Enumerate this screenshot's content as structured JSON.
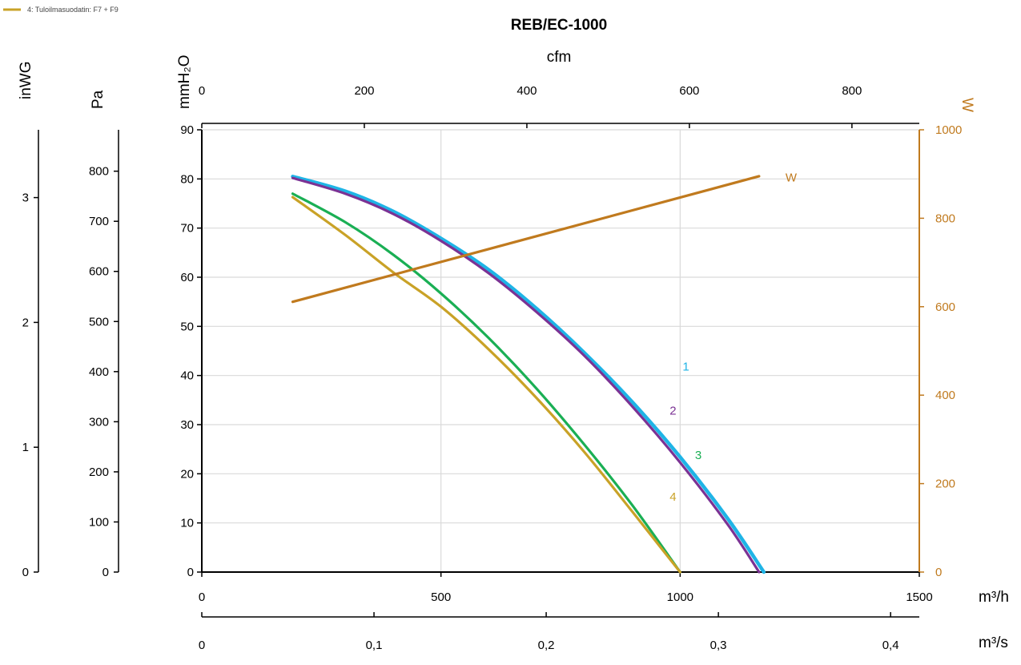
{
  "legend": {
    "entries": [
      {
        "color": "#C9A227",
        "label": "4: Tuloilmasuodatin: F7 + F9"
      }
    ]
  },
  "chart_data": {
    "type": "line",
    "title": "REB/EC-1000",
    "x_axes": {
      "primary": {
        "label": "m³/h",
        "range": [
          0,
          1500
        ],
        "ticks": [
          0,
          500,
          1000,
          1500
        ]
      },
      "secondary_m3s": {
        "label": "m³/s",
        "range": [
          0,
          0.41667
        ],
        "ticks": [
          0,
          0.1,
          0.2,
          0.3,
          0.4
        ],
        "tick_labels": [
          "0",
          "0,1",
          "0,2",
          "0,3",
          "0,4"
        ]
      },
      "top_cfm": {
        "label": "cfm",
        "range": [
          0,
          882.9
        ],
        "ticks": [
          0,
          200,
          400,
          600,
          800
        ]
      }
    },
    "y_axes": {
      "mmH2O": {
        "label": "mmH₂O",
        "range": [
          0,
          90
        ],
        "ticks": [
          0,
          10,
          20,
          30,
          40,
          50,
          60,
          70,
          80,
          90
        ]
      },
      "Pa": {
        "label": "Pa",
        "range": [
          0,
          882.6
        ],
        "ticks": [
          0,
          100,
          200,
          300,
          400,
          500,
          600,
          700,
          800
        ]
      },
      "inWG": {
        "label": "inWG",
        "range": [
          0,
          3.543
        ],
        "ticks": [
          0,
          1,
          2,
          3
        ]
      },
      "W": {
        "label": "W",
        "range": [
          0,
          1000
        ],
        "ticks": [
          0,
          200,
          400,
          600,
          800,
          1000
        ],
        "color": "#C07A1E"
      }
    },
    "grid": true,
    "series": [
      {
        "name": "1",
        "axis": "mmH2O",
        "color": "#1FB4E6",
        "x": [
          190,
          300,
          400,
          500,
          600,
          700,
          800,
          900,
          1000,
          1100,
          1175
        ],
        "y": [
          80.5,
          77.5,
          73.4,
          67.9,
          61.5,
          53.6,
          44.6,
          34.6,
          23.4,
          10.8,
          0
        ]
      },
      {
        "name": "2",
        "axis": "mmH2O",
        "color": "#7B3294",
        "x": [
          190,
          300,
          400,
          500,
          600,
          700,
          800,
          900,
          1000,
          1100,
          1165
        ],
        "y": [
          80.2,
          77.0,
          72.9,
          67.4,
          60.8,
          52.9,
          44.0,
          33.7,
          22.3,
          9.6,
          0
        ]
      },
      {
        "name": "3",
        "axis": "mmH2O",
        "color": "#1AAF54",
        "x": [
          190,
          300,
          400,
          500,
          600,
          700,
          800,
          900,
          1000,
          1028
        ],
        "y": [
          77.0,
          71.2,
          64.6,
          56.7,
          47.6,
          37.3,
          25.9,
          13.6,
          0,
          0
        ]
      },
      {
        "name": "4",
        "axis": "mmH2O",
        "color": "#C9A227",
        "x": [
          190,
          300,
          400,
          500,
          600,
          700,
          800,
          900,
          1000
        ],
        "y": [
          76.3,
          68.6,
          61.0,
          54.0,
          45.3,
          35.4,
          24.4,
          12.3,
          0
        ]
      },
      {
        "name": "W",
        "axis": "W",
        "color": "#C07A1E",
        "x": [
          190,
          1165
        ],
        "y": [
          611,
          895
        ]
      }
    ],
    "curve_labels": [
      {
        "text": "1",
        "x": 1012,
        "y": 42.0
      },
      {
        "text": "2",
        "x": 985,
        "y": 33.0
      },
      {
        "text": "3",
        "x": 1038,
        "y": 24.0
      },
      {
        "text": "4",
        "x": 985,
        "y": 15.5
      },
      {
        "text": "W",
        "x": 1232,
        "y": 80.5
      }
    ]
  }
}
